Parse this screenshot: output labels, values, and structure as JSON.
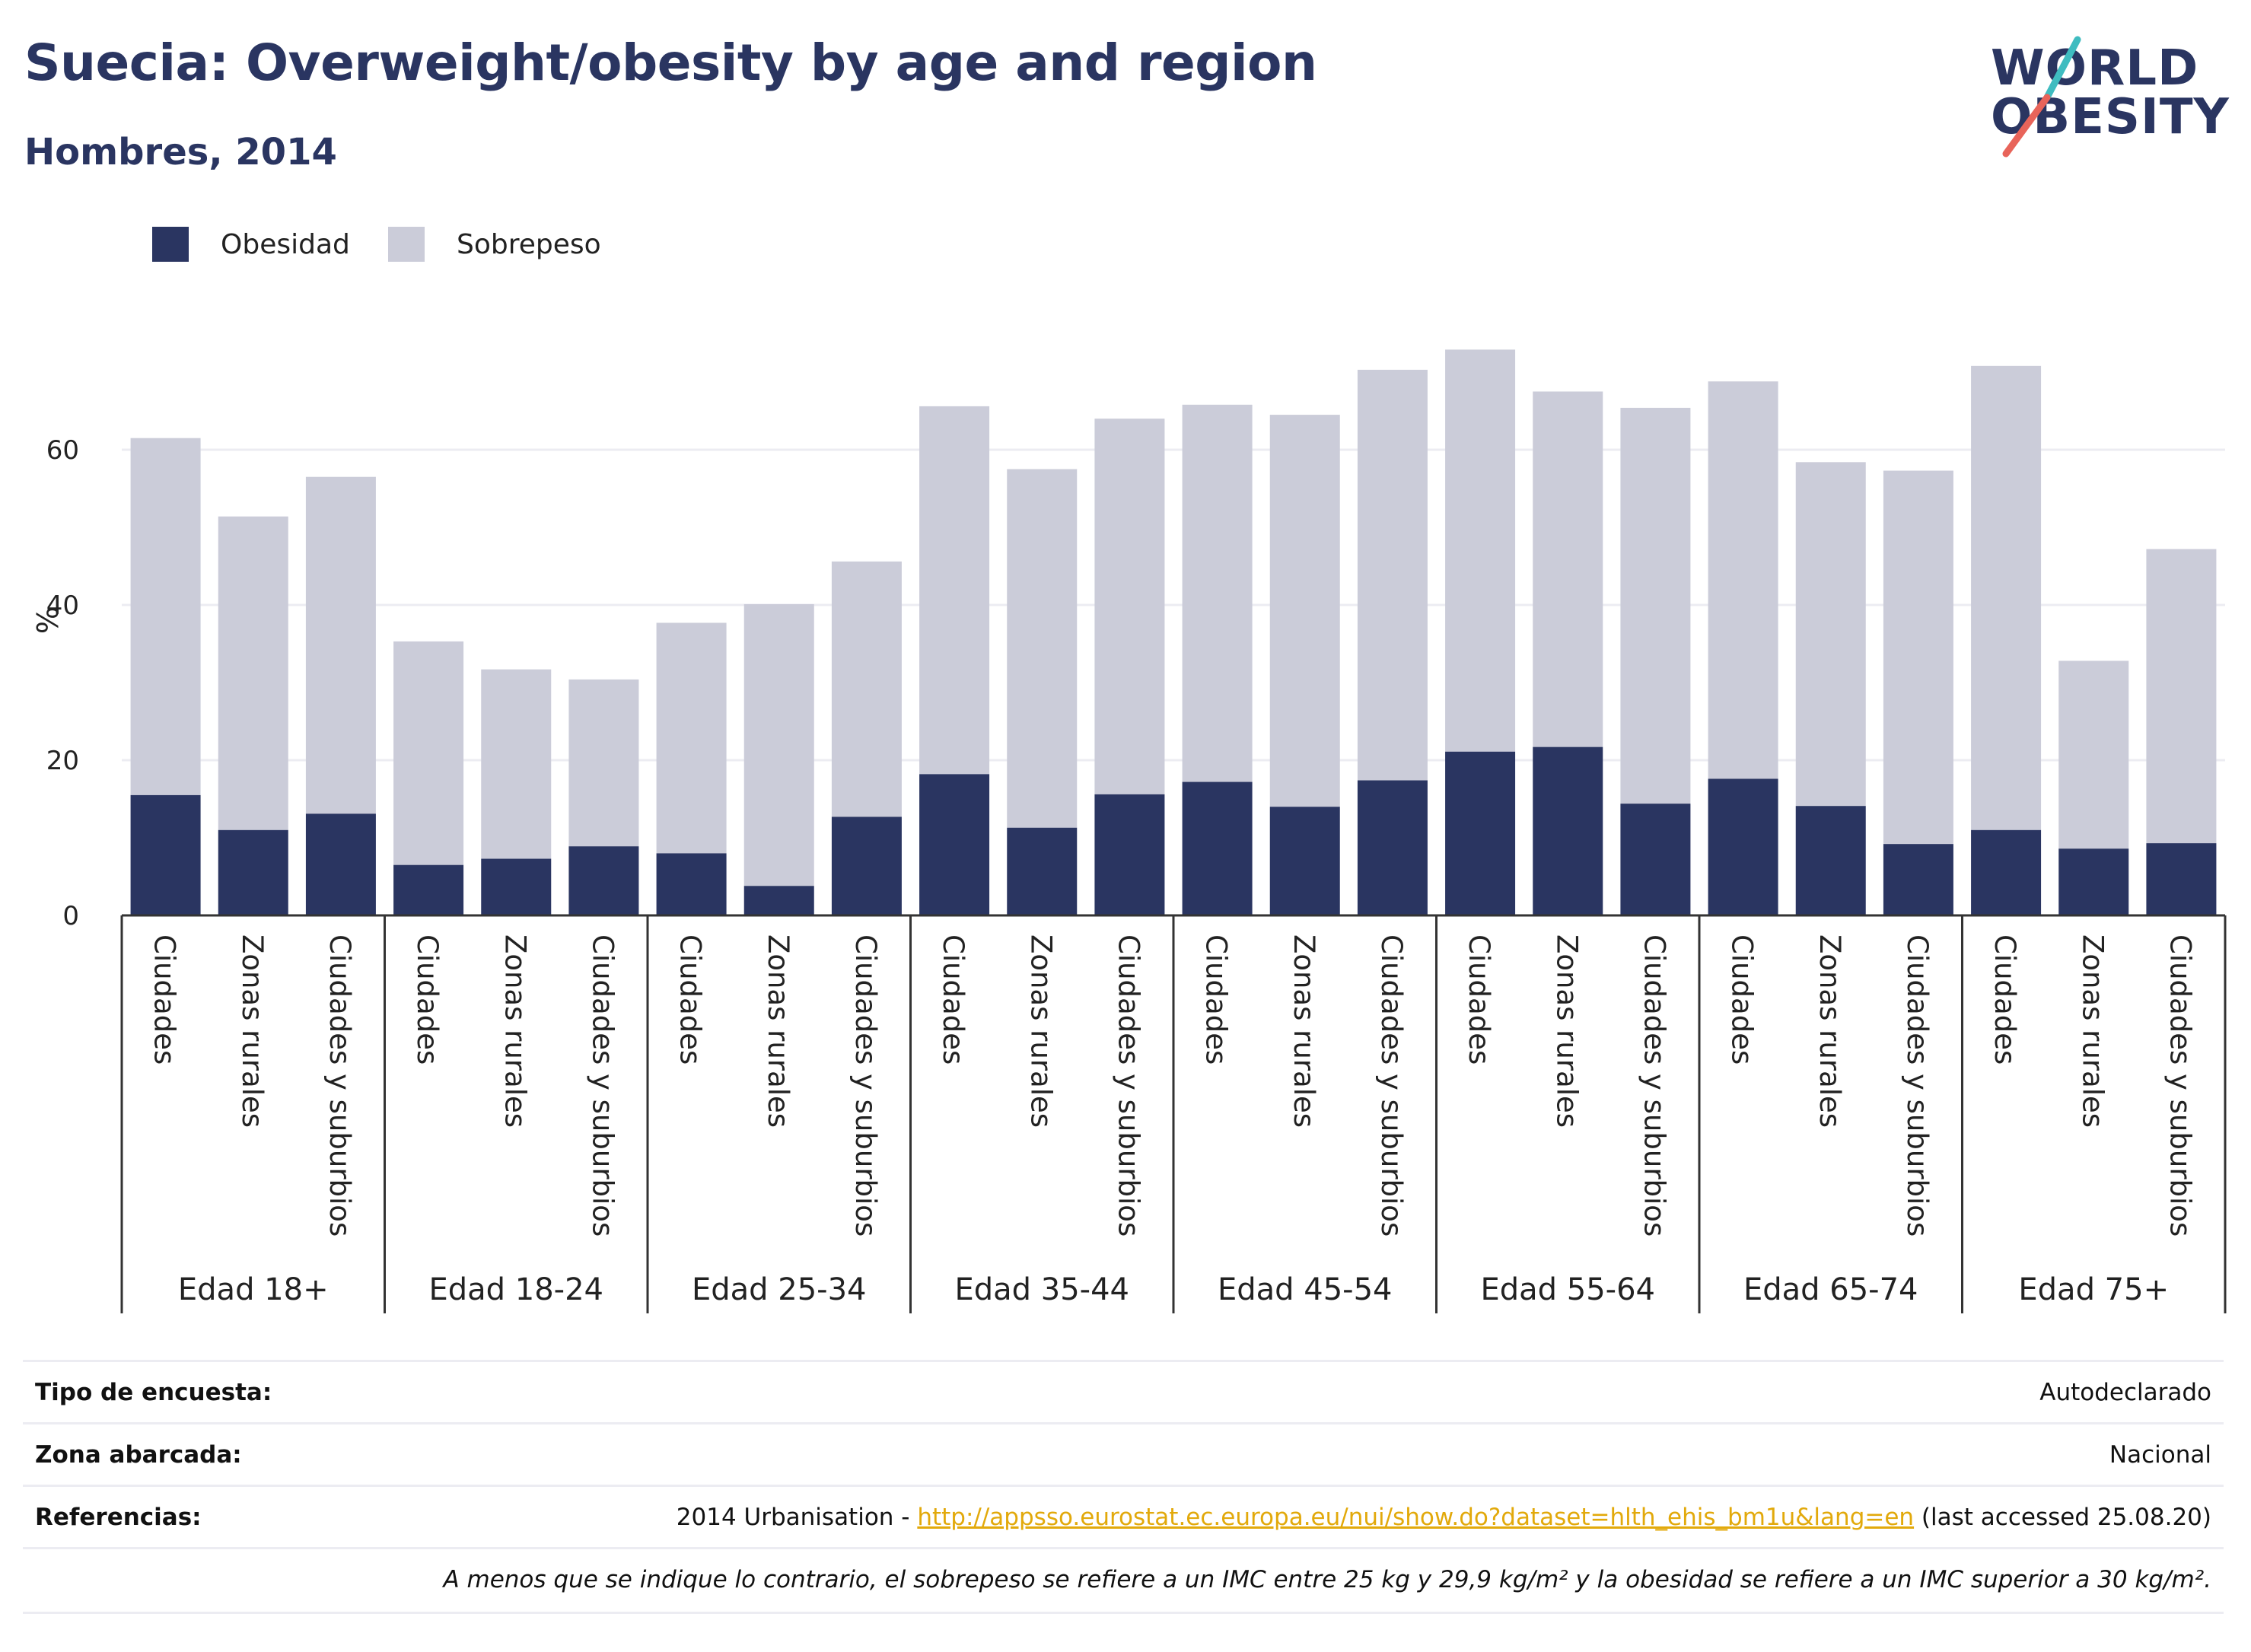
{
  "header": {
    "title": "Suecia: Overweight/obesity by age and region",
    "subtitle": "Hombres, 2014"
  },
  "logo": {
    "line1": "WORLD",
    "line2": "OBESITY"
  },
  "colors": {
    "obesity": "#2a3561",
    "overweight": "#cbccd9",
    "title": "#2a3561",
    "link": "#e2a90b",
    "logo_accent_red": "#e8645a",
    "logo_accent_teal": "#3fbcc0"
  },
  "chart_data": {
    "type": "bar",
    "stacked": true,
    "ylabel": "%",
    "ylim": [
      0,
      75
    ],
    "yticks": [
      0,
      20,
      40,
      60
    ],
    "grid": true,
    "legend_position": "top-left",
    "groups": [
      "Edad 18+",
      "Edad 18-24",
      "Edad 25-34",
      "Edad 35-44",
      "Edad 45-54",
      "Edad 55-64",
      "Edad 65-74",
      "Edad 75+"
    ],
    "subcategories": [
      "Ciudades",
      "Zonas rurales",
      "Ciudades y suburbios"
    ],
    "series": [
      {
        "name": "Obesidad",
        "values": [
          15.5,
          11.0,
          13.1,
          6.5,
          7.3,
          8.9,
          8.0,
          3.8,
          12.7,
          18.2,
          11.3,
          15.6,
          17.2,
          14.0,
          17.4,
          21.1,
          21.7,
          14.4,
          17.6,
          14.1,
          9.2,
          11.0,
          8.6,
          9.3
        ]
      },
      {
        "name": "Sobrepeso",
        "values": [
          46.0,
          40.4,
          43.4,
          28.8,
          24.4,
          21.5,
          29.7,
          36.3,
          32.9,
          47.4,
          46.2,
          48.4,
          48.6,
          50.5,
          52.9,
          51.8,
          45.8,
          51.0,
          51.2,
          44.3,
          48.1,
          59.8,
          24.2,
          37.9
        ]
      }
    ]
  },
  "info": {
    "rows": [
      {
        "label": "Tipo de encuesta:",
        "value": "Autodeclarado"
      },
      {
        "label": "Zona abarcada:",
        "value": "Nacional"
      },
      {
        "label": "Referencias:",
        "prefix": "2014 Urbanisation - ",
        "link": "http://appsso.eurostat.ec.europa.eu/nui/show.do?dataset=hlth_ehis_bm1u&lang=en",
        "suffix": " (last accessed 25.08.20)"
      }
    ],
    "note": "A menos que se indique lo contrario, el sobrepeso se refiere a un IMC entre 25 kg y 29,9 kg/m² y la obesidad se refiere a un IMC superior a 30 kg/m²."
  }
}
